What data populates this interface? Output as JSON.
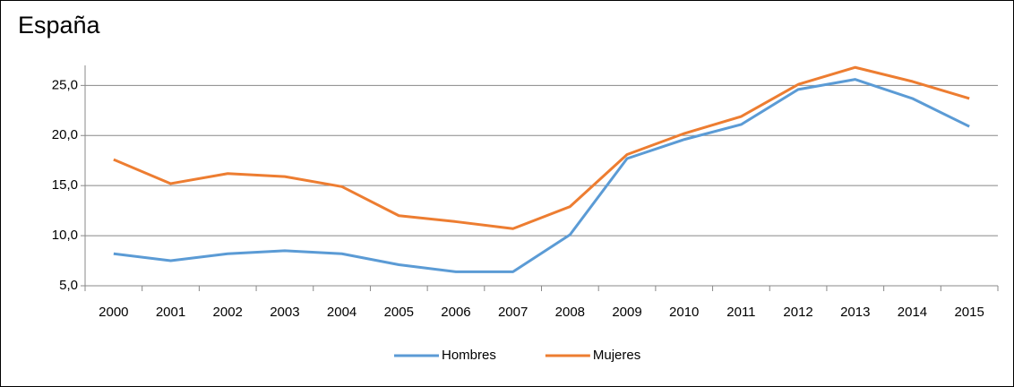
{
  "chart_data": {
    "type": "line",
    "title": "España",
    "categories": [
      "2000",
      "2001",
      "2002",
      "2003",
      "2004",
      "2005",
      "2006",
      "2007",
      "2008",
      "2009",
      "2010",
      "2011",
      "2012",
      "2013",
      "2014",
      "2015"
    ],
    "series": [
      {
        "name": "Hombres",
        "color": "#5b9bd5",
        "values": [
          8.2,
          7.5,
          8.2,
          8.5,
          8.2,
          7.1,
          6.4,
          6.4,
          10.1,
          17.7,
          19.6,
          21.1,
          24.6,
          25.6,
          23.7,
          20.9
        ]
      },
      {
        "name": "Mujeres",
        "color": "#ed7d31",
        "values": [
          17.6,
          15.2,
          16.2,
          15.9,
          14.9,
          12.0,
          11.4,
          10.7,
          12.9,
          18.1,
          20.2,
          21.9,
          25.1,
          26.8,
          25.4,
          23.7
        ]
      }
    ],
    "ylim": [
      5,
      27
    ],
    "yticks": [
      {
        "value": 5,
        "label": "5,0"
      },
      {
        "value": 10,
        "label": "10,0"
      },
      {
        "value": 15,
        "label": "15,0"
      },
      {
        "value": 20,
        "label": "20,0"
      },
      {
        "value": 25,
        "label": "25,0"
      }
    ],
    "grid": true,
    "legend": "bottom"
  }
}
